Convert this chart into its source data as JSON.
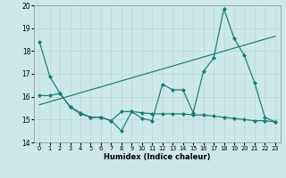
{
  "title": "",
  "xlabel": "Humidex (Indice chaleur)",
  "xlim": [
    -0.5,
    23.5
  ],
  "ylim": [
    14,
    20
  ],
  "yticks": [
    14,
    15,
    16,
    17,
    18,
    19,
    20
  ],
  "xtick_labels": [
    "0",
    "1",
    "2",
    "3",
    "4",
    "5",
    "6",
    "7",
    "8",
    "9",
    "10",
    "11",
    "12",
    "13",
    "14",
    "15",
    "16",
    "17",
    "18",
    "19",
    "20",
    "21",
    "22",
    "23"
  ],
  "bg_color": "#cce8e8",
  "grid_color": "#b8d8d8",
  "line_color": "#1a7a6e",
  "line1_x": [
    0,
    1,
    2,
    3,
    4,
    5,
    6,
    7,
    8,
    9,
    10,
    11,
    12,
    13,
    14,
    15,
    16,
    17,
    18,
    19,
    20,
    21,
    22,
    23
  ],
  "line1_y": [
    18.4,
    16.9,
    16.15,
    15.55,
    15.25,
    15.1,
    15.1,
    14.95,
    14.5,
    15.35,
    15.05,
    14.95,
    16.55,
    16.3,
    16.3,
    15.3,
    17.1,
    17.7,
    19.85,
    18.55,
    17.8,
    16.6,
    15.1,
    14.9
  ],
  "line2_x": [
    0,
    1,
    2,
    3,
    4,
    5,
    6,
    7,
    8,
    9,
    10,
    11,
    12,
    13,
    14,
    15,
    16,
    17,
    18,
    19,
    20,
    21,
    22,
    23
  ],
  "line2_y": [
    16.05,
    16.05,
    16.15,
    15.55,
    15.3,
    15.1,
    15.1,
    14.95,
    15.35,
    15.35,
    15.3,
    15.25,
    15.25,
    15.25,
    15.25,
    15.2,
    15.2,
    15.15,
    15.1,
    15.05,
    15.0,
    14.95,
    14.95,
    14.9
  ],
  "line3_x": [
    0,
    23
  ],
  "line3_y": [
    15.65,
    18.65
  ],
  "marker": "D",
  "markersize": 2.2,
  "linewidth": 0.85
}
